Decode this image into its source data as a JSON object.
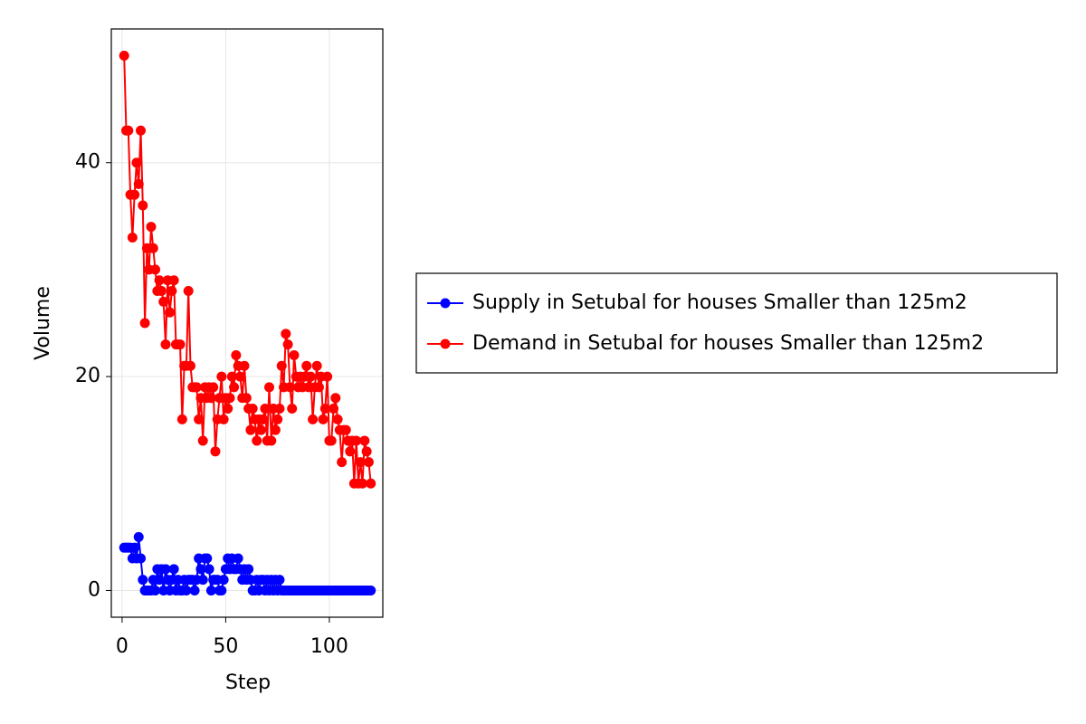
{
  "chart_data": {
    "type": "line",
    "x_label": "Step",
    "y_label": "Volume",
    "x": [
      1,
      2,
      3,
      4,
      5,
      6,
      7,
      8,
      9,
      10,
      11,
      12,
      13,
      14,
      15,
      16,
      17,
      18,
      19,
      20,
      21,
      22,
      23,
      24,
      25,
      26,
      27,
      28,
      29,
      30,
      31,
      32,
      33,
      34,
      35,
      36,
      37,
      38,
      39,
      40,
      41,
      42,
      43,
      44,
      45,
      46,
      47,
      48,
      49,
      50,
      51,
      52,
      53,
      54,
      55,
      56,
      57,
      58,
      59,
      60,
      61,
      62,
      63,
      64,
      65,
      66,
      67,
      68,
      69,
      70,
      71,
      72,
      73,
      74,
      75,
      76,
      77,
      78,
      79,
      80,
      81,
      82,
      83,
      84,
      85,
      86,
      87,
      88,
      89,
      90,
      91,
      92,
      93,
      94,
      95,
      96,
      97,
      98,
      99,
      100,
      101,
      102,
      103,
      104,
      105,
      106,
      107,
      108,
      109,
      110,
      111,
      112,
      113,
      114,
      115,
      116,
      117,
      118,
      119,
      120
    ],
    "series": [
      {
        "name": "Supply in Setubal for houses Smaller than 125m2",
        "color": "#0000ff",
        "values": [
          4,
          4,
          4,
          4,
          3,
          4,
          3,
          5,
          3,
          1,
          0,
          0,
          0,
          0,
          1,
          0,
          2,
          1,
          2,
          0,
          2,
          1,
          0,
          1,
          2,
          0,
          1,
          0,
          0,
          1,
          0,
          1,
          1,
          1,
          0,
          1,
          3,
          2,
          1,
          3,
          3,
          2,
          0,
          1,
          1,
          1,
          0,
          0,
          1,
          2,
          3,
          2,
          3,
          2,
          2,
          3,
          2,
          1,
          2,
          1,
          2,
          1,
          0,
          0,
          1,
          0,
          1,
          1,
          0,
          1,
          0,
          1,
          0,
          1,
          0,
          1,
          0,
          0,
          0,
          0,
          0,
          0,
          0,
          0,
          0,
          0,
          0,
          0,
          0,
          0,
          0,
          0,
          0,
          0,
          0,
          0,
          0,
          0,
          0,
          0,
          0,
          0,
          0,
          0,
          0,
          0,
          0,
          0,
          0,
          0,
          0,
          0,
          0,
          0,
          0,
          0,
          0,
          0,
          0,
          0
        ]
      },
      {
        "name": "Demand in Setubal for houses Smaller than 125m2",
        "color": "#ff0000",
        "values": [
          50,
          43,
          43,
          37,
          33,
          37,
          40,
          38,
          43,
          36,
          25,
          32,
          30,
          34,
          32,
          30,
          28,
          29,
          28,
          27,
          23,
          29,
          26,
          28,
          29,
          23,
          23,
          23,
          16,
          21,
          21,
          28,
          21,
          19,
          19,
          19,
          16,
          18,
          14,
          19,
          18,
          19,
          18,
          19,
          13,
          16,
          18,
          20,
          16,
          18,
          17,
          18,
          20,
          19,
          22,
          21,
          20,
          18,
          21,
          18,
          17,
          15,
          17,
          16,
          14,
          16,
          15,
          16,
          17,
          14,
          19,
          14,
          17,
          15,
          16,
          17,
          21,
          19,
          24,
          23,
          19,
          17,
          22,
          20,
          19,
          20,
          19,
          20,
          21,
          19,
          20,
          16,
          19,
          21,
          19,
          20,
          16,
          17,
          20,
          14,
          14,
          17,
          18,
          16,
          15,
          12,
          15,
          15,
          14,
          13,
          14,
          10,
          14,
          10,
          12,
          10,
          14,
          13,
          12,
          10
        ]
      }
    ],
    "xlim": [
      -5.2,
      125.8
    ],
    "ylim": [
      -2.5,
      52.5
    ],
    "xticks": [
      0,
      50,
      100
    ],
    "yticks": [
      0,
      20,
      40
    ],
    "grid": true,
    "legend": "right"
  }
}
